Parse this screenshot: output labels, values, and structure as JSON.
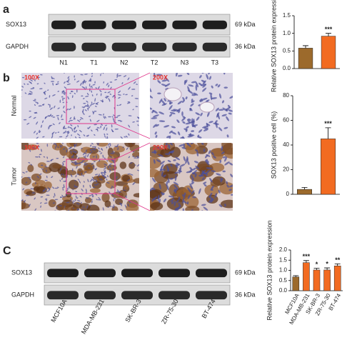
{
  "panel_labels": [
    "a",
    "b",
    "C"
  ],
  "blots": [
    {
      "rows": [
        {
          "protein": "SOX13",
          "size": "69 kDa"
        },
        {
          "protein": "GAPDH",
          "size": "36 kDa"
        }
      ],
      "lanes": [
        "N1",
        "T1",
        "N2",
        "T2",
        "N3",
        "T3"
      ]
    },
    {
      "rows": [
        {
          "protein": "SOX13",
          "size": "69 kDa"
        },
        {
          "protein": "GAPDH",
          "size": "36 kDa"
        }
      ],
      "lanes": [
        "MCF10A",
        "MDA-MB-231",
        "SK-BR-3",
        "ZR-75-30",
        "BT-474"
      ]
    }
  ],
  "histology": {
    "rows": [
      "Normal",
      "Tumor"
    ],
    "magnifications": [
      "100X",
      "200X"
    ]
  },
  "chart_data": [
    {
      "type": "bar",
      "y_label": "Relative SOX13 protein expression",
      "categories": [
        null,
        null
      ],
      "values": [
        0.58,
        0.92
      ],
      "errors": [
        0.07,
        0.08
      ],
      "colors": [
        "#9c6a2c",
        "#f26b21"
      ],
      "annotations": [
        null,
        "***"
      ],
      "ylim": [
        0,
        1.5
      ],
      "yticks": [
        {
          "value": 0,
          "label": "0.0"
        },
        {
          "value": 0.5,
          "label": "0.5"
        },
        {
          "value": 1,
          "label": "1.0"
        },
        {
          "value": 1.5,
          "label": "1.5"
        }
      ]
    },
    {
      "type": "bar",
      "y_label": "SOX13 positive cell (%)",
      "categories": [
        null,
        null
      ],
      "values": [
        4,
        45
      ],
      "errors": [
        1.5,
        9
      ],
      "colors": [
        "#9c6a2c",
        "#f26b21"
      ],
      "annotations": [
        null,
        "***"
      ],
      "ylim": [
        0,
        80
      ],
      "yticks": [
        0,
        20,
        40,
        60,
        80
      ]
    },
    {
      "type": "bar",
      "y_label": "Relative SOX13 protein expression",
      "categories": [
        "MCF10A",
        "MDA-MB-231",
        "SK-BR-3",
        "ZR-75-30",
        "BT-474"
      ],
      "values": [
        0.68,
        1.38,
        1.02,
        1.02,
        1.22
      ],
      "errors": [
        0.06,
        0.1,
        0.08,
        0.1,
        0.1
      ],
      "colors": [
        "#9c6a2c",
        "#f26b21",
        "#f26b21",
        "#f26b21",
        "#f26b21"
      ],
      "annotations": [
        null,
        "***",
        "*",
        "*",
        "**"
      ],
      "ylim": [
        0,
        2
      ],
      "yticks": [
        {
          "value": 0,
          "label": "0.0"
        },
        {
          "value": 0.5,
          "label": "0.5"
        },
        {
          "value": 1,
          "label": "1.0"
        },
        {
          "value": 1.5,
          "label": "1.5"
        },
        {
          "value": 2,
          "label": "2.0"
        }
      ]
    }
  ]
}
